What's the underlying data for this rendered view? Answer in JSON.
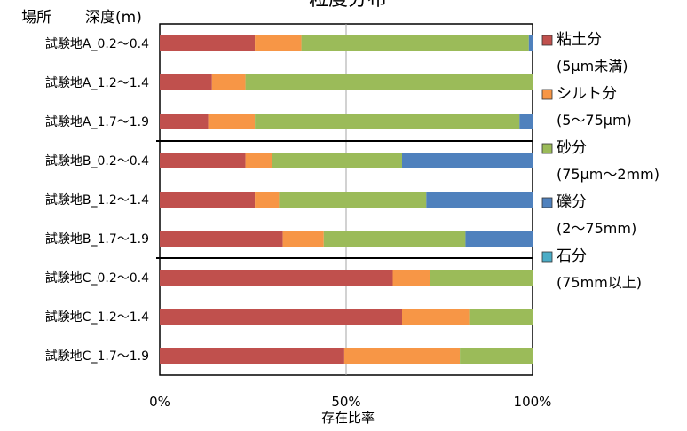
{
  "chart_data": {
    "type": "bar",
    "stacked": "percent",
    "orientation": "horizontal",
    "title": "粒度分布",
    "category_header_1": "場所",
    "category_header_2": "深度(m)",
    "xlabel": "存在比率",
    "x_ticks": [
      "0%",
      "50%",
      "100%"
    ],
    "xlim": [
      0,
      100
    ],
    "grid": "vertical at 50%",
    "legend_position": "right",
    "categories": [
      "試験地A_0.2〜0.4",
      "試験地A_1.2〜1.4",
      "試験地A_1.7〜1.9",
      "試験地B_0.2〜0.4",
      "試験地B_1.2〜1.4",
      "試験地B_1.7〜1.9",
      "試験地C_0.2〜0.4",
      "試験地C_1.2〜1.4",
      "試験地C_1.7〜1.9"
    ],
    "group_separators_after_index": [
      2,
      5
    ],
    "series": [
      {
        "name": "粘土分",
        "sublabel": "(5μm未満)",
        "color": "#C0504D",
        "values": [
          25.5,
          14,
          13,
          23,
          25.5,
          33,
          62.5,
          65,
          49.5
        ]
      },
      {
        "name": "シルト分",
        "sublabel": "(5〜75μm)",
        "color": "#F79646",
        "values": [
          12.5,
          9,
          12.5,
          7,
          6.5,
          11,
          10,
          18,
          31
        ]
      },
      {
        "name": "砂分",
        "sublabel": "(75μm〜2mm)",
        "color": "#9BBB59",
        "values": [
          61,
          77,
          71,
          35,
          39.5,
          38,
          27.5,
          17,
          19.5
        ]
      },
      {
        "name": "礫分",
        "sublabel": "(2〜75mm)",
        "color": "#4F81BD",
        "values": [
          1,
          0,
          3.5,
          35,
          28.5,
          18,
          0,
          0,
          0
        ]
      },
      {
        "name": "石分",
        "sublabel": "(75mm以上)",
        "color": "#4BACC6",
        "values": [
          0,
          0,
          0,
          0,
          0,
          0,
          0,
          0,
          0
        ]
      }
    ]
  }
}
